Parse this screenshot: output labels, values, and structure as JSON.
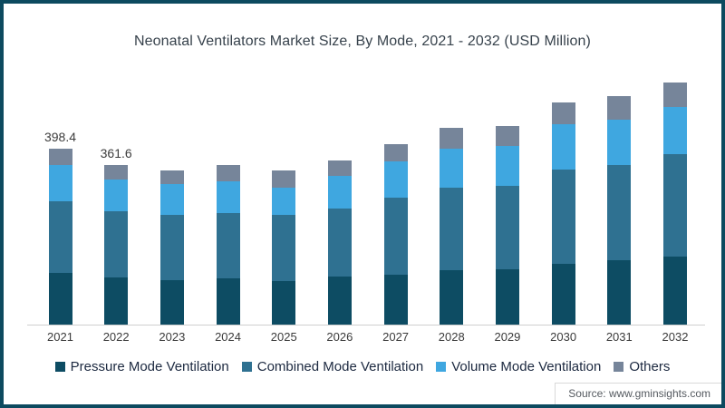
{
  "title": "Neonatal Ventilators Market Size, By Mode, 2021 - 2032 (USD Million)",
  "source": "Source: www.gminsights.com",
  "colors": {
    "border": "#0d4a5f",
    "axis_line": "#cfcfcf",
    "pressure": "#0d4c63",
    "combined": "#2f7191",
    "volume": "#3fa7e0",
    "others": "#76859a"
  },
  "chart_data": {
    "type": "bar",
    "subtype": "stacked-vertical",
    "title": "Neonatal Ventilators Market Size, By Mode, 2021 - 2032 (USD Million)",
    "xlabel": "",
    "ylabel": "USD Million",
    "grid": false,
    "legend_position": "bottom",
    "categories": [
      "2021",
      "2022",
      "2023",
      "2024",
      "2025",
      "2026",
      "2027",
      "2028",
      "2029",
      "2030",
      "2031",
      "2032"
    ],
    "series": [
      {
        "name": "Pressure Mode Ventilation",
        "color": "#0d4c63",
        "values": [
          116.8,
          105.6,
          100,
          105,
          98,
          108,
          113,
          122,
          124,
          138,
          145,
          153
        ]
      },
      {
        "name": "Combined Mode Ventilation",
        "color": "#2f7191",
        "values": [
          161.6,
          150.0,
          147,
          147,
          149,
          154,
          173,
          188,
          190,
          213,
          215,
          232
        ]
      },
      {
        "name": "Volume Mode Ventilation",
        "color": "#3fa7e0",
        "values": [
          82.0,
          72.5,
          70,
          72,
          63,
          74,
          82,
          87,
          89,
          102,
          104,
          106
        ]
      },
      {
        "name": "Others",
        "color": "#76859a",
        "values": [
          38.0,
          33.5,
          32,
          37,
          38,
          34,
          40,
          47,
          45,
          49,
          53,
          57
        ]
      }
    ],
    "totals": [
      398.4,
      361.6,
      349,
      361,
      348,
      370,
      408,
      444,
      448,
      502,
      517,
      548
    ],
    "bar_labels": [
      "398.4",
      "361.6",
      "",
      "",
      "",
      "",
      "",
      "",
      "",
      "",
      "",
      ""
    ]
  }
}
